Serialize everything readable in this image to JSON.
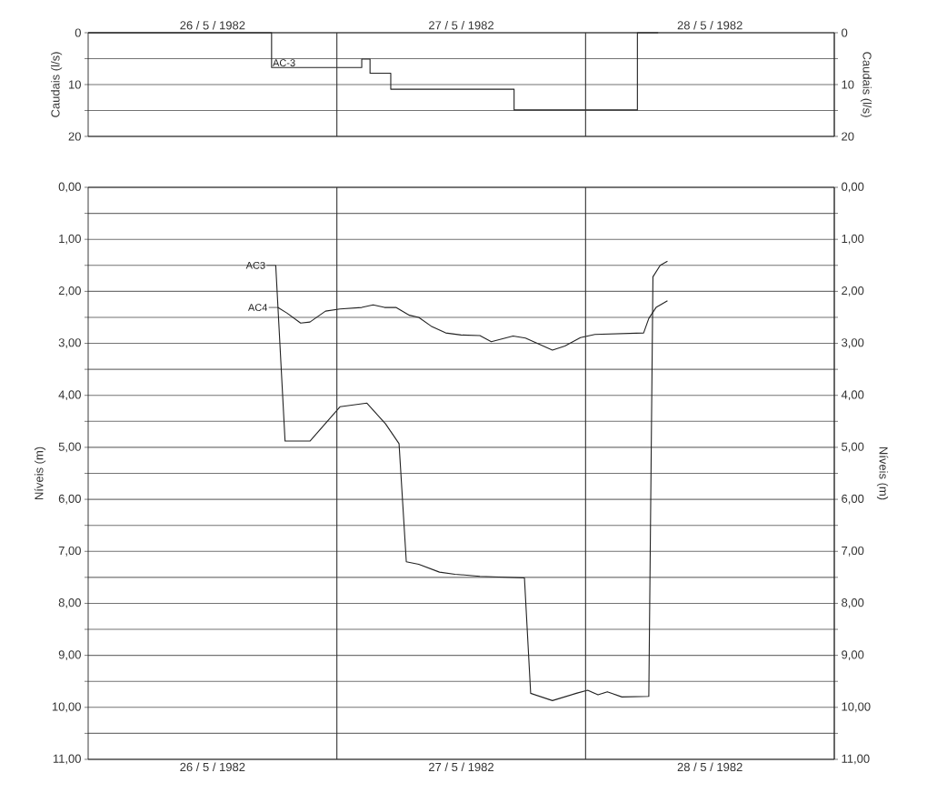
{
  "chart_data": [
    {
      "type": "step",
      "ylabel": "Caudais (l/s)",
      "y2label": "Caudais (l/s)",
      "xlim": [
        "1982-05-26T00:00",
        "1982-05-29T00:00"
      ],
      "xticks": [
        {
          "value": "1982-05-26T12:00",
          "label": "26 / 5 / 1982"
        },
        {
          "value": "1982-05-27T12:00",
          "label": "27 / 5 / 1982"
        },
        {
          "value": "1982-05-28T12:00",
          "label": "28 / 5 / 1982"
        }
      ],
      "ylim": [
        20,
        0
      ],
      "yticks": [
        0,
        {
          "value": 5,
          "label": null
        },
        10,
        {
          "value": 15,
          "label": null
        },
        20
      ],
      "y2lim": [
        20,
        0
      ],
      "y2ticks": [
        0,
        {
          "value": 5,
          "label": null
        },
        10,
        {
          "value": 15,
          "label": null
        },
        20
      ],
      "grid": "y",
      "legend": "top left",
      "ref_lines": [
        {
          "axis": "x",
          "value": "1982-05-27T00:00"
        },
        {
          "axis": "x",
          "value": "1982-05-28T00:00"
        }
      ],
      "series": [
        {
          "name": "AC-3",
          "color": "#222222",
          "x": [
            "1982-05-26T00:00",
            "1982-05-26T17:42",
            "1982-05-27T02:24",
            "1982-05-27T03:12",
            "1982-05-27T05:12",
            "1982-05-27T17:06",
            "1982-05-28T05:00",
            "1982-05-28T07:00"
          ],
          "values": [
            0,
            6.7,
            5.1,
            7.8,
            10.9,
            14.9,
            0,
            0
          ]
        }
      ]
    },
    {
      "type": "line",
      "ylabel": "Níveis (m)",
      "y2label": "Níveis (m)",
      "xlim": [
        "1982-05-26T00:00",
        "1982-05-29T00:00"
      ],
      "xticks": [
        {
          "value": "1982-05-26T12:00",
          "label": "26 / 5 / 1982"
        },
        {
          "value": "1982-05-27T12:00",
          "label": "27 / 5 / 1982"
        },
        {
          "value": "1982-05-28T12:00",
          "label": "28 / 5 / 1982"
        }
      ],
      "ylim": [
        11,
        0
      ],
      "yticks": [
        {
          "value": 0,
          "label": "0,00"
        },
        {
          "value": 0.5,
          "label": null
        },
        {
          "value": 1,
          "label": "1,00"
        },
        {
          "value": 1.5,
          "label": null
        },
        {
          "value": 2,
          "label": "2,00"
        },
        {
          "value": 2.5,
          "label": null
        },
        {
          "value": 3,
          "label": "3,00"
        },
        {
          "value": 3.5,
          "label": null
        },
        {
          "value": 4,
          "label": "4,00"
        },
        {
          "value": 4.5,
          "label": null
        },
        {
          "value": 5,
          "label": "5,00"
        },
        {
          "value": 5.5,
          "label": null
        },
        {
          "value": 6,
          "label": "6,00"
        },
        {
          "value": 6.5,
          "label": null
        },
        {
          "value": 7,
          "label": "7,00"
        },
        {
          "value": 7.5,
          "label": null
        },
        {
          "value": 8,
          "label": "8,00"
        },
        {
          "value": 8.5,
          "label": null
        },
        {
          "value": 9,
          "label": "9,00"
        },
        {
          "value": 9.5,
          "label": null
        },
        {
          "value": 10,
          "label": "10,00"
        },
        {
          "value": 10.5,
          "label": null
        },
        {
          "value": 11,
          "label": "11,00"
        }
      ],
      "y2lim": [
        11,
        0
      ],
      "y2ticks": [
        {
          "value": 0,
          "label": "0,00"
        },
        {
          "value": 0.5,
          "label": null
        },
        {
          "value": 1,
          "label": "1,00"
        },
        {
          "value": 1.5,
          "label": null
        },
        {
          "value": 2,
          "label": "2,00"
        },
        {
          "value": 2.5,
          "label": null
        },
        {
          "value": 3,
          "label": "3,00"
        },
        {
          "value": 3.5,
          "label": null
        },
        {
          "value": 4,
          "label": "4,00"
        },
        {
          "value": 4.5,
          "label": null
        },
        {
          "value": 5,
          "label": "5,00"
        },
        {
          "value": 5.5,
          "label": null
        },
        {
          "value": 6,
          "label": "6,00"
        },
        {
          "value": 6.5,
          "label": null
        },
        {
          "value": 7,
          "label": "7,00"
        },
        {
          "value": 7.5,
          "label": null
        },
        {
          "value": 8,
          "label": "8,00"
        },
        {
          "value": 8.5,
          "label": null
        },
        {
          "value": 9,
          "label": "9,00"
        },
        {
          "value": 9.5,
          "label": null
        },
        {
          "value": 10,
          "label": "10,00"
        },
        {
          "value": 10.5,
          "label": null
        },
        {
          "value": 11,
          "label": "11,00"
        }
      ],
      "grid": "y",
      "legend": "left",
      "ref_lines": [
        {
          "axis": "x",
          "value": "1982-05-27T00:00"
        },
        {
          "axis": "x",
          "value": "1982-05-28T00:00"
        }
      ],
      "series": [
        {
          "name": "AC3",
          "color": "#222222",
          "x": [
            "1982-05-26T18:06",
            "1982-05-26T19:00",
            "1982-05-26T21:24",
            "1982-05-27T00:18",
            "1982-05-27T02:54",
            "1982-05-27T04:42",
            "1982-05-27T06:00",
            "1982-05-27T06:42",
            "1982-05-27T07:54",
            "1982-05-27T09:54",
            "1982-05-27T11:24",
            "1982-05-27T13:48",
            "1982-05-27T18:06",
            "1982-05-27T18:42",
            "1982-05-27T20:48",
            "1982-05-27T23:06",
            "1982-05-28T00:12",
            "1982-05-28T01:12",
            "1982-05-28T02:06",
            "1982-05-28T03:30",
            "1982-05-28T06:06",
            "1982-05-28T06:30",
            "1982-05-28T07:12",
            "1982-05-28T07:54"
          ],
          "values": [
            1.5,
            4.88,
            4.88,
            4.22,
            4.15,
            4.55,
            4.93,
            7.2,
            7.25,
            7.4,
            7.44,
            7.48,
            7.51,
            9.73,
            9.87,
            9.73,
            9.67,
            9.76,
            9.7,
            9.8,
            9.79,
            1.72,
            1.5,
            1.42
          ]
        },
        {
          "name": "AC4",
          "color": "#222222",
          "x": [
            "1982-05-26T18:18",
            "1982-05-26T19:12",
            "1982-05-26T20:30",
            "1982-05-26T21:24",
            "1982-05-26T22:54",
            "1982-05-27T00:18",
            "1982-05-27T02:24",
            "1982-05-27T03:30",
            "1982-05-27T04:36",
            "1982-05-27T05:42",
            "1982-05-27T07:00",
            "1982-05-27T07:54",
            "1982-05-27T09:06",
            "1982-05-27T10:30",
            "1982-05-27T12:00",
            "1982-05-27T13:48",
            "1982-05-27T14:54",
            "1982-05-27T17:00",
            "1982-05-27T18:12",
            "1982-05-27T20:48",
            "1982-05-27T22:00",
            "1982-05-27T23:30",
            "1982-05-28T00:54",
            "1982-05-28T05:36",
            "1982-05-28T06:06",
            "1982-05-28T06:48",
            "1982-05-28T07:54"
          ],
          "values": [
            2.31,
            2.42,
            2.61,
            2.59,
            2.38,
            2.34,
            2.31,
            2.26,
            2.31,
            2.31,
            2.46,
            2.5,
            2.67,
            2.8,
            2.84,
            2.85,
            2.97,
            2.86,
            2.9,
            3.13,
            3.05,
            2.89,
            2.83,
            2.8,
            2.52,
            2.31,
            2.18
          ]
        }
      ]
    }
  ]
}
